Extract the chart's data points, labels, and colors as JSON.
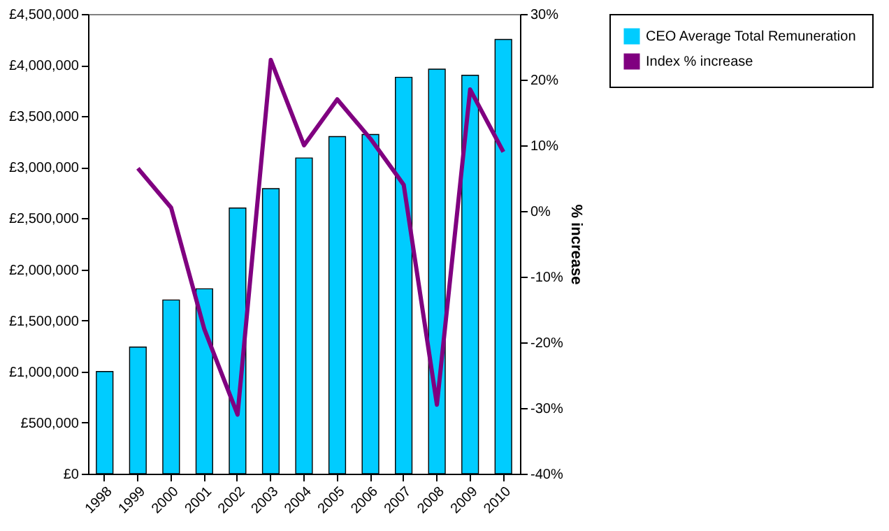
{
  "chart_data": {
    "type": "bar",
    "y2label": "% increase",
    "categories": [
      "1998",
      "1999",
      "2000",
      "2001",
      "2002",
      "2003",
      "2004",
      "2005",
      "2006",
      "2007",
      "2008",
      "2009",
      "2010"
    ],
    "series": [
      {
        "name": "CEO Average Total Remuneration",
        "color": "#00ccff",
        "values": [
          1000000,
          1240000,
          1700000,
          1810000,
          2600000,
          2790000,
          3090000,
          3300000,
          3320000,
          3880000,
          3960000,
          3900000,
          4250000
        ]
      },
      {
        "name": "Index % increase",
        "type": "line",
        "axis": "y2",
        "color": "#800080",
        "values": [
          null,
          6.5,
          0.5,
          -18,
          -31,
          23,
          10,
          17,
          11,
          4,
          -29.5,
          18.5,
          9
        ]
      }
    ],
    "ylim": [
      0,
      4500000
    ],
    "yticks": [
      {
        "value": 0,
        "label": "£0"
      },
      {
        "value": 500000,
        "label": "£500,000"
      },
      {
        "value": 1000000,
        "label": "£1,000,000"
      },
      {
        "value": 1500000,
        "label": "£1,500,000"
      },
      {
        "value": 2000000,
        "label": "£2,000,000"
      },
      {
        "value": 2500000,
        "label": "£2,500,000"
      },
      {
        "value": 3000000,
        "label": "£3,000,000"
      },
      {
        "value": 3500000,
        "label": "£3,500,000"
      },
      {
        "value": 4000000,
        "label": "£4,000,000"
      },
      {
        "value": 4500000,
        "label": "£4,500,000"
      }
    ],
    "y2lim": [
      -40,
      30
    ],
    "y2ticks": [
      {
        "value": -40,
        "label": "-40%"
      },
      {
        "value": -30,
        "label": "-30%"
      },
      {
        "value": -20,
        "label": "-20%"
      },
      {
        "value": -10,
        "label": "-10%"
      },
      {
        "value": 0,
        "label": "0%"
      },
      {
        "value": 10,
        "label": "10%"
      },
      {
        "value": 20,
        "label": "20%"
      },
      {
        "value": 30,
        "label": "30%"
      }
    ],
    "grid": false,
    "legend": "right"
  }
}
